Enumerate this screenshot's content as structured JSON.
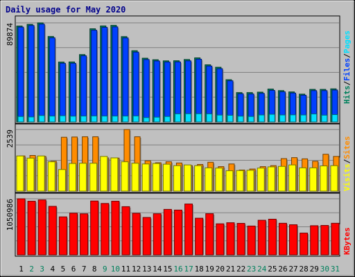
{
  "chart_data": {
    "type": "bar",
    "title": "Daily usage for May 2020",
    "categories": [
      "1",
      "2",
      "3",
      "4",
      "5",
      "6",
      "7",
      "8",
      "9",
      "10",
      "11",
      "12",
      "13",
      "14",
      "15",
      "16",
      "17",
      "18",
      "19",
      "20",
      "21",
      "22",
      "23",
      "24",
      "25",
      "26",
      "27",
      "28",
      "29",
      "30",
      "31"
    ],
    "weekend_days": [
      "2",
      "3",
      "9",
      "10",
      "16",
      "17",
      "23",
      "24",
      "30",
      "31"
    ],
    "panels": [
      {
        "name": "hits-files-pages",
        "y_tick_label": "89874",
        "ylim": [
          0,
          89874
        ],
        "series": [
          {
            "name": "Hits",
            "color": "#00805c",
            "values": [
              87000,
              88500,
              89874,
              77500,
              54300,
              54400,
              61100,
              84500,
              87100,
              87600,
              77400,
              64600,
              57800,
              56400,
              55400,
              55500,
              56600,
              58100,
              51800,
              49600,
              38300,
              26600,
              26600,
              27000,
              29800,
              28400,
              27200,
              25200,
              29500,
              29500,
              30000
            ]
          },
          {
            "name": "Files",
            "color": "#0040ff",
            "values": [
              86000,
              87500,
              88700,
              76300,
              53200,
              53200,
              60000,
              83200,
              85800,
              86200,
              76200,
              63300,
              56600,
              55300,
              54300,
              54400,
              55400,
              56900,
              50700,
              48300,
              37300,
              25500,
              25300,
              25900,
              28600,
              27300,
              26200,
              24200,
              28400,
              28400,
              28900
            ]
          },
          {
            "name": "Pages",
            "color": "#00e0ff",
            "values": [
              4900,
              4500,
              5800,
              5300,
              5600,
              5200,
              5300,
              5400,
              5300,
              5300,
              5300,
              5400,
              3900,
              4300,
              4900,
              7300,
              7400,
              7400,
              7300,
              6200,
              6000,
              5200,
              4900,
              6300,
              6900,
              6300,
              6400,
              6300,
              7200,
              6100,
              6600
            ]
          }
        ]
      },
      {
        "name": "sites-visits",
        "y_tick_label": "2539",
        "ylim": [
          0,
          2539
        ],
        "series": [
          {
            "name": "Visits",
            "color": "#ffff00",
            "values": [
              1450,
              1360,
              1450,
              1210,
              890,
              1140,
              1150,
              1150,
              1430,
              1370,
              1210,
              1150,
              1120,
              1140,
              1110,
              1050,
              1080,
              1050,
              960,
              950,
              840,
              850,
              860,
              950,
              1000,
              1020,
              1080,
              960,
              960,
              1040,
              1050
            ]
          },
          {
            "name": "Sites",
            "color": "#ff8c00",
            "values": [
              1450,
              1470,
              1430,
              1230,
              2220,
              2230,
              2240,
              2240,
              1370,
              1360,
              2539,
              2240,
              1250,
              1170,
              1210,
              1160,
              1050,
              1100,
              1190,
              1010,
              1120,
              870,
              910,
              1010,
              1050,
              1340,
              1380,
              1330,
              1230,
              1520,
              1430
            ]
          }
        ]
      },
      {
        "name": "kbytes",
        "y_tick_label": "1050986",
        "ylim": [
          0,
          1050986
        ],
        "series": [
          {
            "name": "KBytes",
            "color": "#ff0000",
            "values": [
              1050986,
              1005000,
              1030000,
              909000,
              712000,
              781000,
              769000,
              1009000,
              963000,
              1005000,
              903000,
              779000,
              701000,
              770000,
              852000,
              839000,
              953000,
              687000,
              771000,
              582000,
              602000,
              590000,
              540000,
              648000,
              668000,
              592000,
              564000,
              408000,
              546000,
              551000,
              592000
            ]
          }
        ]
      }
    ],
    "side_labels": [
      {
        "parts": [
          {
            "text": "Hits",
            "color": "#00805c"
          },
          {
            "text": "/",
            "color": "#000000"
          },
          {
            "text": "Files",
            "color": "#0040ff"
          },
          {
            "text": "/",
            "color": "#000000"
          },
          {
            "text": "Pages",
            "color": "#00e0ff"
          }
        ]
      },
      {
        "parts": [
          {
            "text": "Visits",
            "color": "#ffff00"
          },
          {
            "text": "/",
            "color": "#000000"
          },
          {
            "text": "Sites",
            "color": "#ff8c00"
          }
        ]
      },
      {
        "parts": [
          {
            "text": "KBytes",
            "color": "#ff0000"
          }
        ]
      }
    ]
  }
}
